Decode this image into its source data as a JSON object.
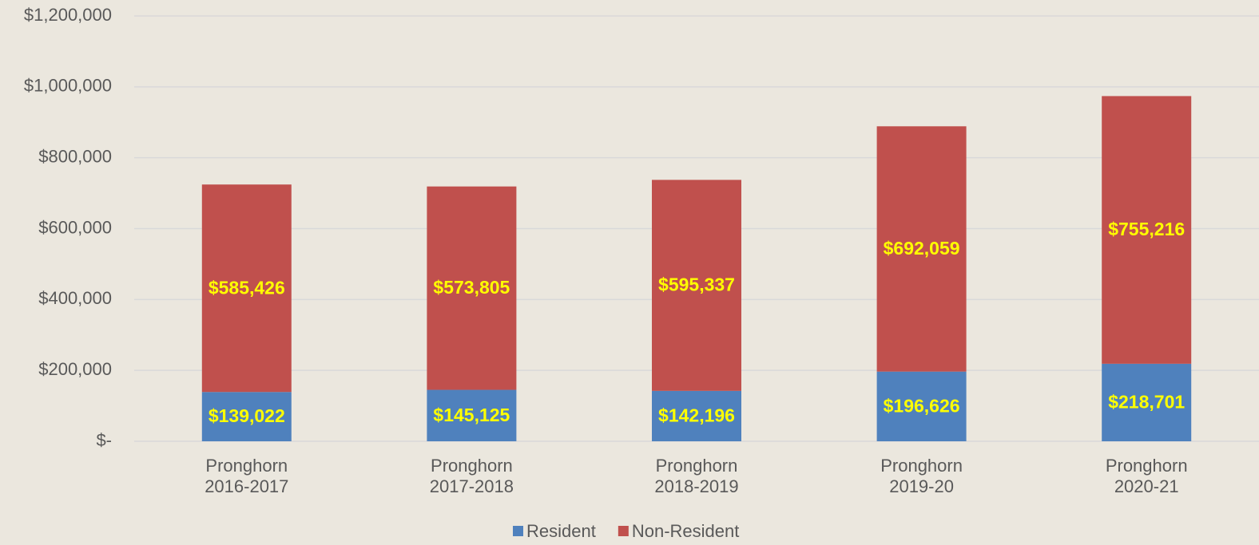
{
  "chart_data": {
    "type": "stacked_bar",
    "categories": [
      "Pronghorn\n2016-2017",
      "Pronghorn\n2017-2018",
      "Pronghorn\n2018-2019",
      "Pronghorn\n2019-20",
      "Pronghorn\n2020-21"
    ],
    "series": [
      {
        "name": "Resident",
        "color": "#4f81bd",
        "values": [
          139022,
          145125,
          142196,
          196626,
          218701
        ],
        "value_labels": [
          "$139,022",
          "$145,125",
          "$142,196",
          "$196,626",
          "$218,701"
        ]
      },
      {
        "name": "Non-Resident",
        "color": "#c0504d",
        "values": [
          585426,
          573805,
          595337,
          692059,
          755216
        ],
        "value_labels": [
          "$585,426",
          "$573,805",
          "$595,337",
          "$692,059",
          "$755,216"
        ]
      }
    ],
    "ylim": [
      0,
      1200000
    ],
    "yticks": [
      {
        "value": 0,
        "label": "$-"
      },
      {
        "value": 200000,
        "label": "$200,000"
      },
      {
        "value": 400000,
        "label": "$400,000"
      },
      {
        "value": 600000,
        "label": "$600,000"
      },
      {
        "value": 800000,
        "label": "$800,000"
      },
      {
        "value": 1000000,
        "label": "$1,000,000"
      },
      {
        "value": 1200000,
        "label": "$1,200,000"
      }
    ],
    "grid": true,
    "legend": "bottom"
  }
}
